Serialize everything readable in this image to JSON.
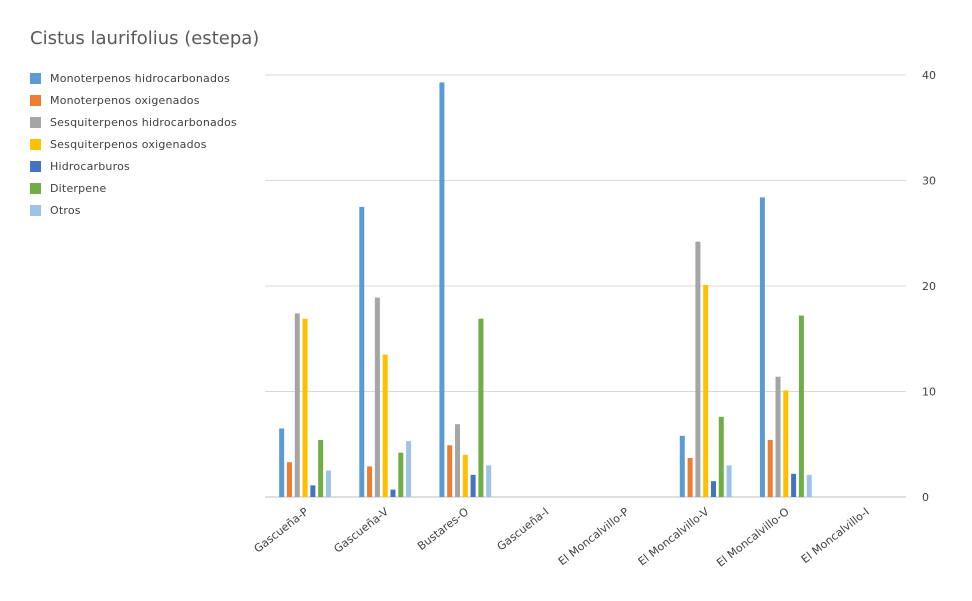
{
  "chart_data": {
    "type": "bar",
    "title": "Cistus laurifolius (estepa)",
    "categories": [
      "Gascueña-P",
      "Gascueña-V",
      "Bustares-O",
      "Gascueña-I",
      "El Moncalvillo-P",
      "El Moncalvillo-V",
      "El Moncalvillo-O",
      "El Moncalvillo-I"
    ],
    "series": [
      {
        "name": "Monoterpenos hidrocarbonados",
        "color": "#5B9BD5",
        "values": [
          6.5,
          27.5,
          39.3,
          null,
          null,
          5.8,
          28.4,
          null
        ]
      },
      {
        "name": "Monoterpenos oxigenados",
        "color": "#ED7D31",
        "values": [
          3.3,
          2.9,
          4.9,
          null,
          null,
          3.7,
          5.4,
          null
        ]
      },
      {
        "name": "Sesquiterpenos hidrocarbonados",
        "color": "#A5A5A5",
        "values": [
          17.4,
          18.9,
          6.9,
          null,
          null,
          24.2,
          11.4,
          null
        ]
      },
      {
        "name": "Sesquiterpenos oxigenados",
        "color": "#FFC000",
        "values": [
          16.9,
          13.5,
          4.0,
          null,
          null,
          20.1,
          10.1,
          null
        ]
      },
      {
        "name": "Hidrocarburos",
        "color": "#4472C4",
        "values": [
          1.1,
          0.7,
          2.1,
          null,
          null,
          1.5,
          2.2,
          null
        ]
      },
      {
        "name": "Diterpene",
        "color": "#70AD47",
        "values": [
          5.4,
          4.2,
          16.9,
          null,
          null,
          7.6,
          17.2,
          null
        ]
      },
      {
        "name": "Otros",
        "color": "#9DC3E6",
        "values": [
          2.5,
          5.3,
          3.0,
          null,
          null,
          3.0,
          2.1,
          null
        ]
      }
    ],
    "ylim": [
      0,
      40
    ],
    "yticks": [
      0,
      10,
      20,
      30,
      40
    ],
    "y_axis_side": "right",
    "grid": true,
    "legend_position": "top-left"
  }
}
